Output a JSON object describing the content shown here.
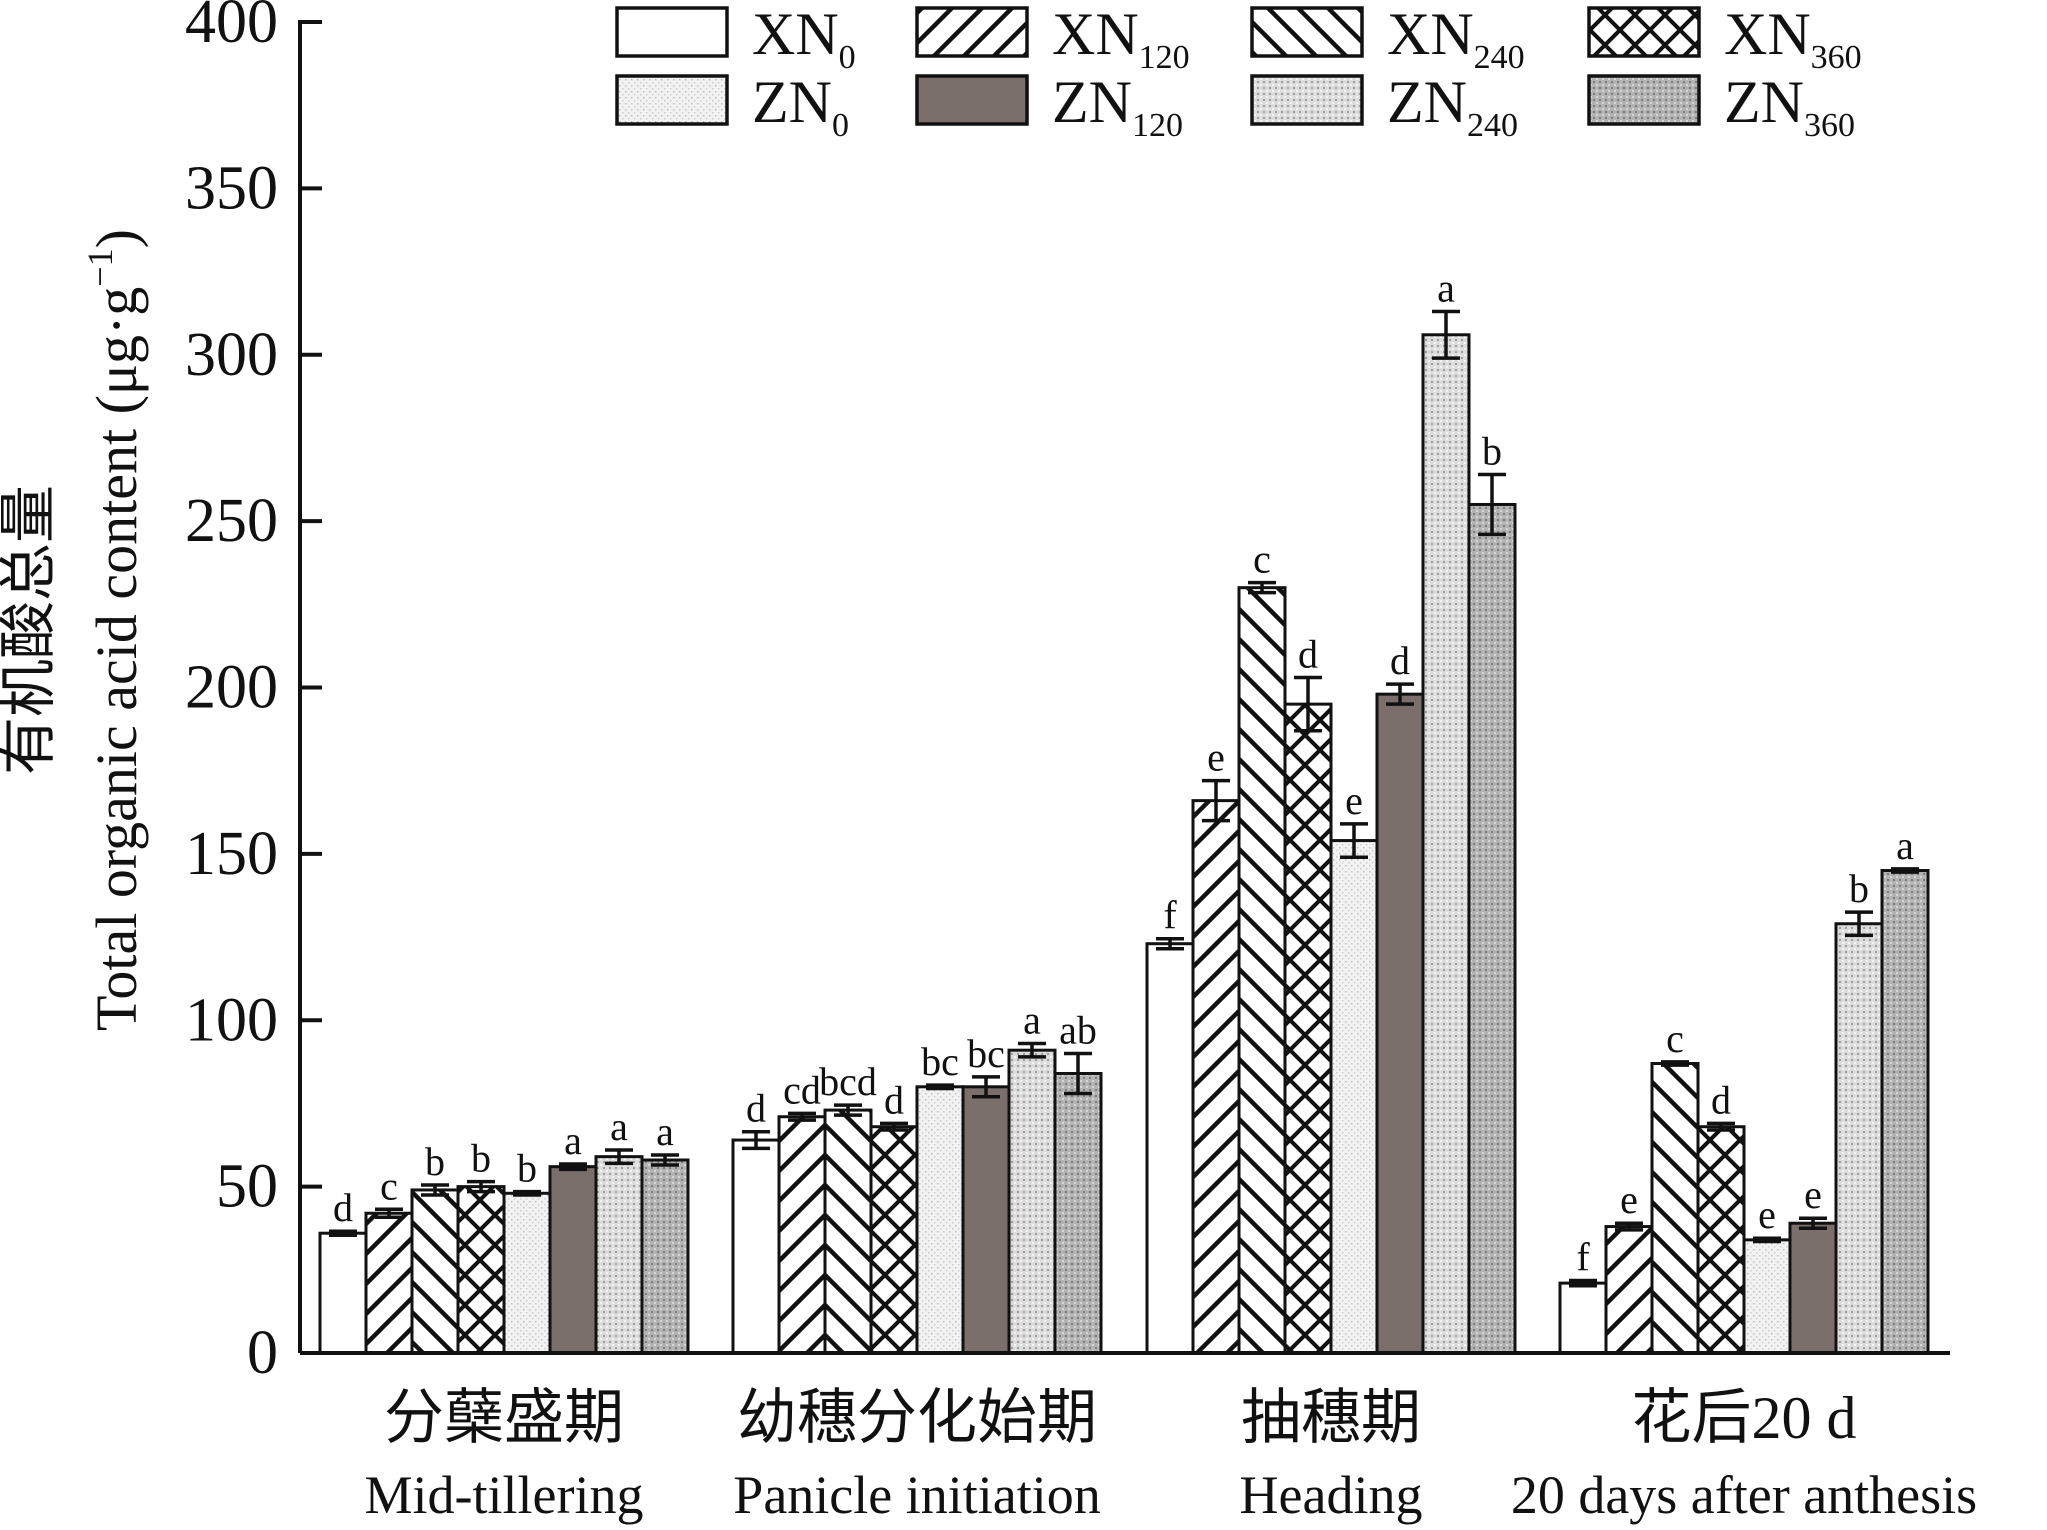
{
  "chart_data": {
    "type": "bar",
    "title": "",
    "ylabel_cn": "有机酸总量",
    "ylabel_en": "Total organic acid content (μg·g",
    "ylabel_sup": "−1",
    "ylabel_close": ")",
    "ylim": [
      0,
      400
    ],
    "yticks": [
      0,
      50,
      100,
      150,
      200,
      250,
      300,
      350,
      400
    ],
    "legend_position": "top-right",
    "categories": [
      {
        "cn": "分蘖盛期",
        "en": "Mid-tillering"
      },
      {
        "cn": "幼穗分化始期",
        "en": "Panicle initiation"
      },
      {
        "cn": "抽穗期",
        "en": "Heading"
      },
      {
        "cn": "花后20 d",
        "en": "20 days after anthesis"
      }
    ],
    "series": [
      {
        "name": "XN",
        "sub": "0",
        "pattern": "white",
        "values": [
          36,
          64,
          123,
          21
        ],
        "errors": [
          0.6,
          2.5,
          1.5,
          0.8
        ],
        "letters": [
          "d",
          "d",
          "f",
          "f"
        ]
      },
      {
        "name": "XN",
        "sub": "120",
        "pattern": "hatch-forward",
        "values": [
          42,
          71,
          166,
          38
        ],
        "errors": [
          1.2,
          1.0,
          6.0,
          1.0
        ],
        "letters": [
          "c",
          "cd",
          "e",
          "e"
        ]
      },
      {
        "name": "XN",
        "sub": "240",
        "pattern": "hatch-back",
        "values": [
          49,
          73,
          230,
          87
        ],
        "errors": [
          1.5,
          1.5,
          1.5,
          0.5
        ],
        "letters": [
          "b",
          "bcd",
          "c",
          "c"
        ]
      },
      {
        "name": "XN",
        "sub": "360",
        "pattern": "crosshatch",
        "values": [
          50,
          68,
          195,
          68
        ],
        "errors": [
          1.5,
          1.0,
          8.0,
          1.0
        ],
        "letters": [
          "b",
          "d",
          "d",
          "d"
        ]
      },
      {
        "name": "ZN",
        "sub": "0",
        "pattern": "light-dots",
        "values": [
          48,
          80,
          154,
          34
        ],
        "errors": [
          0.5,
          0.5,
          5.0,
          0.5
        ],
        "letters": [
          "b",
          "bc",
          "e",
          "e"
        ]
      },
      {
        "name": "ZN",
        "sub": "120",
        "pattern": "dark-gray",
        "values": [
          56,
          80,
          198,
          39
        ],
        "errors": [
          0.8,
          3.0,
          3.0,
          1.5
        ],
        "letters": [
          "a",
          "bc",
          "d",
          "e"
        ]
      },
      {
        "name": "ZN",
        "sub": "240",
        "pattern": "light-stipple",
        "values": [
          59,
          91,
          306,
          129
        ],
        "errors": [
          2.0,
          2.0,
          7.0,
          3.5
        ],
        "letters": [
          "a",
          "a",
          "a",
          "b"
        ]
      },
      {
        "name": "ZN",
        "sub": "360",
        "pattern": "mid-stipple",
        "values": [
          58,
          84,
          255,
          145
        ],
        "errors": [
          1.5,
          6.0,
          9.0,
          0.5
        ],
        "letters": [
          "a",
          "ab",
          "b",
          "a"
        ]
      }
    ]
  }
}
